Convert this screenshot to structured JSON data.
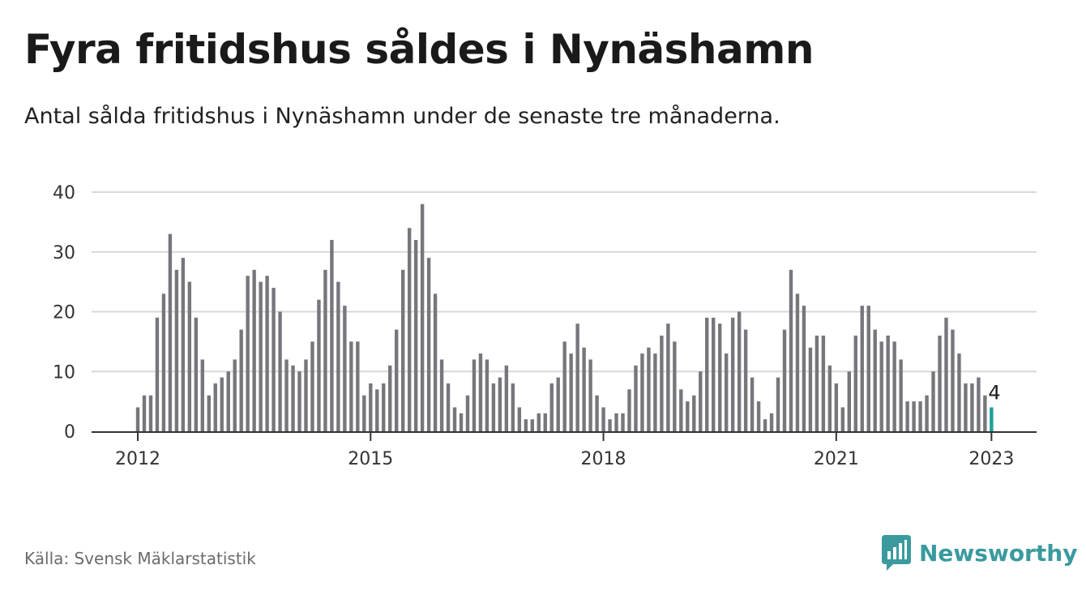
{
  "header": {
    "title": "Fyra fritidshus såldes i Nynäshamn",
    "subtitle": "Antal sålda fritidshus i Nynäshamn under de senaste tre månaderna."
  },
  "footer": {
    "source": "Källa: Svensk Mäklarstatistik",
    "brand": "Newsworthy"
  },
  "colors": {
    "bar": "#76767c",
    "highlight": "#1aa19b",
    "grid": "#d9d9d9",
    "brand": "#3a9a9e"
  },
  "icons": {
    "brand_logo": "newsworthy-bar-chart-bubble-icon"
  },
  "chart_data": {
    "type": "bar",
    "title": "Fyra fritidshus såldes i Nynäshamn",
    "subtitle": "Antal sålda fritidshus i Nynäshamn under de senaste tre månaderna.",
    "x_start": "2012-01",
    "x_end": "2023-01",
    "frequency": "monthly",
    "values": [
      4,
      6,
      6,
      19,
      23,
      33,
      27,
      29,
      25,
      19,
      12,
      6,
      8,
      9,
      10,
      12,
      17,
      26,
      27,
      25,
      26,
      24,
      20,
      12,
      11,
      10,
      12,
      15,
      22,
      27,
      32,
      25,
      21,
      15,
      15,
      6,
      8,
      7,
      8,
      11,
      17,
      27,
      34,
      32,
      38,
      29,
      23,
      12,
      8,
      4,
      3,
      6,
      12,
      13,
      12,
      8,
      9,
      11,
      8,
      4,
      2,
      2,
      3,
      3,
      8,
      9,
      15,
      13,
      18,
      14,
      12,
      6,
      4,
      2,
      3,
      3,
      7,
      11,
      13,
      14,
      13,
      16,
      18,
      15,
      7,
      5,
      6,
      10,
      19,
      19,
      18,
      13,
      19,
      20,
      17,
      9,
      5,
      2,
      3,
      9,
      17,
      27,
      23,
      21,
      14,
      16,
      16,
      11,
      8,
      4,
      10,
      16,
      21,
      21,
      17,
      15,
      16,
      15,
      12,
      5,
      5,
      5,
      6,
      10,
      16,
      19,
      17,
      13,
      8,
      8,
      9,
      6,
      4
    ],
    "highlight_last": true,
    "annotation": "4",
    "x_ticks": [
      "2012",
      "2015",
      "2018",
      "2021",
      "2023"
    ],
    "y_ticks": [
      "0",
      "10",
      "20",
      "30",
      "40"
    ],
    "ylim": [
      0,
      40
    ],
    "grid": true,
    "legend": "none"
  }
}
